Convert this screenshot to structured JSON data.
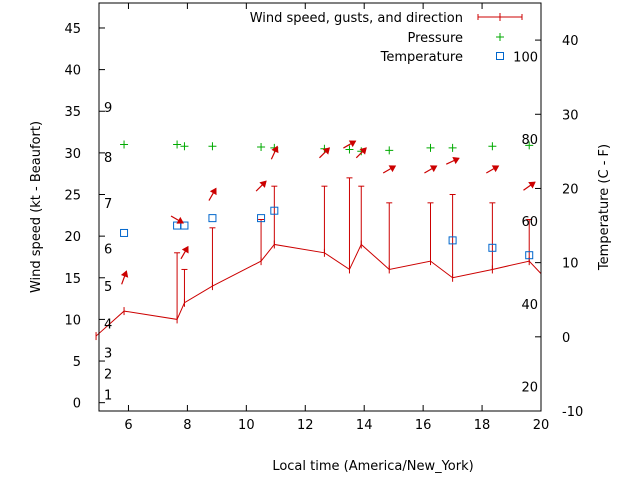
{
  "chart_data": {
    "type": "line",
    "xlabel": "Local time (America/New_York)",
    "ylabel_left": "Wind speed (kt - Beaufort)",
    "ylabel_right": "Temperature (C - F)",
    "xlim": [
      5,
      20
    ],
    "ylim_left": [
      -1,
      48
    ],
    "ylim_right_c": [
      -10,
      45
    ],
    "x_ticks": [
      6,
      8,
      10,
      12,
      14,
      16,
      18,
      20
    ],
    "y_ticks_left": [
      0,
      5,
      10,
      15,
      20,
      25,
      30,
      35,
      40,
      45
    ],
    "y_ticks_right_c": [
      -10,
      0,
      10,
      20,
      30,
      40
    ],
    "beaufort_labels": [
      {
        "label": "1",
        "kt": 1
      },
      {
        "label": "2",
        "kt": 3.5
      },
      {
        "label": "3",
        "kt": 6
      },
      {
        "label": "4",
        "kt": 9.5
      },
      {
        "label": "5",
        "kt": 14
      },
      {
        "label": "6",
        "kt": 18.5
      },
      {
        "label": "7",
        "kt": 24
      },
      {
        "label": "8",
        "kt": 29.5
      },
      {
        "label": "9",
        "kt": 35.5
      }
    ],
    "fahrenheit_labels": [
      {
        "label": "20",
        "c": -6.7
      },
      {
        "label": "40",
        "c": 4.4
      },
      {
        "label": "60",
        "c": 15.6
      },
      {
        "label": "80",
        "c": 26.7
      },
      {
        "label": "100",
        "c": 37.8
      }
    ],
    "legend": [
      {
        "key": "wind",
        "label": "Wind speed, gusts, and direction"
      },
      {
        "key": "pressure",
        "label": "Pressure"
      },
      {
        "key": "temperature",
        "label": "Temperature"
      }
    ],
    "legend_position": "top-right",
    "colors": {
      "wind": "#cc0000",
      "pressure": "#00aa00",
      "temperature": "#0066cc",
      "direction": "#cc0000"
    },
    "wind": {
      "x": [
        4.9,
        5.85,
        7.65,
        7.9,
        8.85,
        10.5,
        10.95,
        12.65,
        13.5,
        13.9,
        14.85,
        16.25,
        17.0,
        18.35,
        19.6,
        20.0
      ],
      "speed": [
        8,
        11,
        10,
        12,
        14,
        17,
        19,
        18,
        16,
        19,
        16,
        17,
        15,
        16,
        17,
        15.5
      ],
      "gust": [
        null,
        null,
        18,
        16,
        21,
        22,
        26,
        26,
        27,
        26,
        24,
        24,
        25,
        24,
        22,
        null
      ]
    },
    "pressure": {
      "x": [
        5.85,
        7.65,
        7.9,
        8.85,
        10.5,
        10.95,
        12.65,
        13.5,
        13.9,
        14.85,
        16.25,
        17.0,
        18.35,
        19.6
      ],
      "y": [
        31,
        31,
        30.8,
        30.8,
        30.7,
        30.6,
        30.5,
        30.4,
        30.2,
        30.3,
        30.6,
        30.6,
        30.8,
        30.9
      ]
    },
    "temperature": {
      "x": [
        5.85,
        7.65,
        7.9,
        8.85,
        10.5,
        10.95,
        17.0,
        18.35,
        19.6
      ],
      "c": [
        14,
        15,
        15,
        16,
        16,
        17,
        13,
        12,
        11
      ]
    },
    "direction": {
      "x": [
        5.85,
        7.65,
        7.9,
        8.85,
        10.5,
        10.95,
        12.65,
        13.5,
        13.9,
        14.85,
        16.25,
        17.0,
        18.35,
        19.6
      ],
      "kt": [
        15,
        22,
        18,
        25,
        26,
        30,
        30,
        31,
        30,
        28,
        28,
        29,
        28,
        26
      ],
      "deg": [
        200,
        300,
        210,
        210,
        225,
        205,
        225,
        240,
        225,
        240,
        240,
        245,
        240,
        235
      ]
    }
  }
}
